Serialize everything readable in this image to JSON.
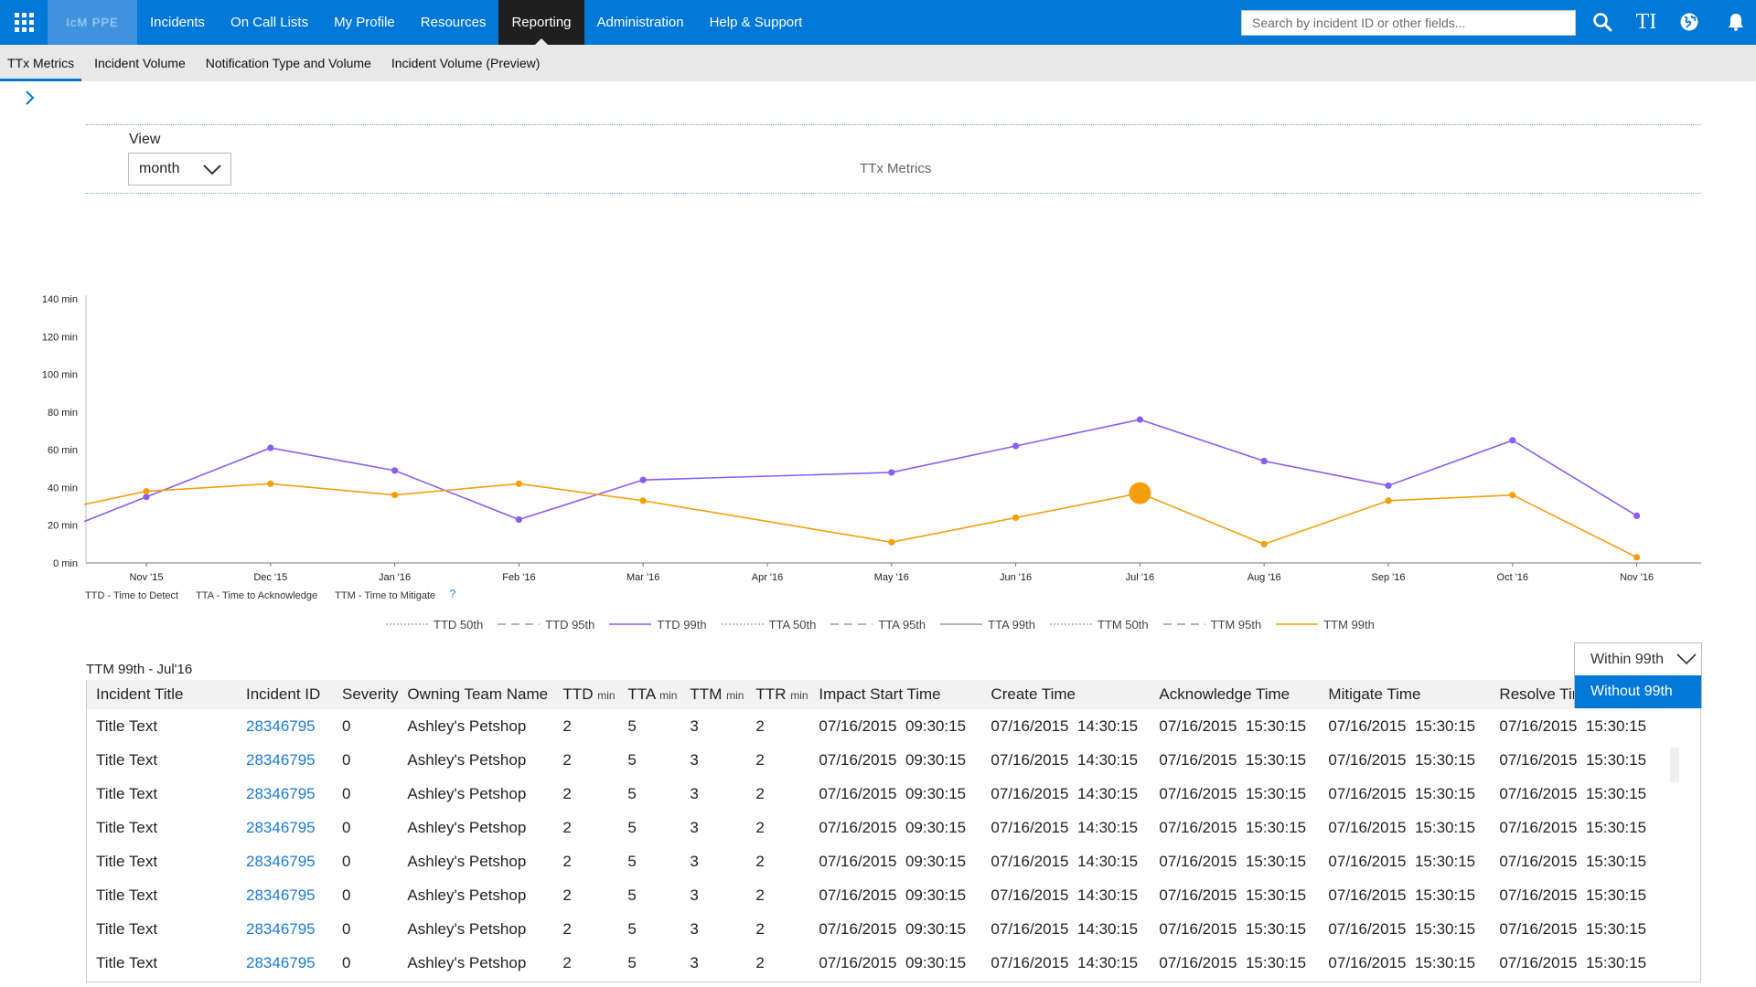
{
  "topnav": {
    "brand": "IcM PPE",
    "items": [
      "Incidents",
      "On Call Lists",
      "My Profile",
      "Resources",
      "Reporting",
      "Administration",
      "Help & Support"
    ],
    "active": "Reporting",
    "search_placeholder": "Search by incident ID or other fields...",
    "accent": "#0078d7",
    "icons": [
      "waffle-icon",
      "search-icon",
      "ti-icon",
      "globe-icon",
      "bell-icon"
    ],
    "ti_label": "TI"
  },
  "subnav": {
    "tabs": [
      "TTx Metrics",
      "Incident Volume",
      "Notification Type and Volume",
      "Incident Volume (Preview)"
    ],
    "active": "TTx Metrics"
  },
  "view": {
    "label": "View",
    "selected": "month"
  },
  "chart_caption": "TTx Metrics",
  "chart_data": {
    "type": "line",
    "title": "",
    "xlabel": "",
    "ylabel": "",
    "ylim": [
      0,
      140
    ],
    "ytick_labels": [
      "140 min",
      "120 min",
      "100 min",
      "80 min",
      "60 min",
      "40 min",
      "20 min",
      "0 min"
    ],
    "categories": [
      "Nov '15",
      "Dec '15",
      "Jan '16",
      "Feb '16",
      "Mar '16",
      "Apr '16",
      "May '16",
      "Jun '16",
      "Jul '16",
      "Aug '16",
      "Sep '16",
      "Oct '16",
      "Nov '16"
    ],
    "grid": false,
    "series": [
      {
        "name": "TTD 99th",
        "color": "#8b5cf6",
        "x": [
          -0.5,
          0,
          1,
          2,
          3,
          4,
          6,
          7,
          8,
          9,
          10,
          11,
          12
        ],
        "values": [
          22,
          35,
          61,
          49,
          23,
          44,
          48,
          62,
          76,
          54,
          41,
          65,
          25
        ]
      },
      {
        "name": "TTM 99th",
        "color": "#f59e0b",
        "x": [
          -0.5,
          0,
          1,
          2,
          3,
          4,
          6,
          7,
          8,
          9,
          10,
          11,
          12
        ],
        "values": [
          31,
          38,
          42,
          36,
          42,
          33,
          11,
          24,
          37,
          10,
          33,
          36,
          3
        ]
      }
    ],
    "highlight": {
      "series": "TTM 99th",
      "category": "Jul '16"
    },
    "legend": [
      {
        "name": "TTD 50th",
        "style": "dotted",
        "color": "#999999"
      },
      {
        "name": "TTD 95th",
        "style": "dashed",
        "color": "#888888"
      },
      {
        "name": "TTD 99th",
        "style": "solid",
        "color": "#8b5cf6"
      },
      {
        "name": "TTA 50th",
        "style": "dotted",
        "color": "#999999"
      },
      {
        "name": "TTA 95th",
        "style": "dashed",
        "color": "#888888"
      },
      {
        "name": "TTA 99th",
        "style": "solid",
        "color": "#999999"
      },
      {
        "name": "TTM 50th",
        "style": "dotted",
        "color": "#999999"
      },
      {
        "name": "TTM 95th",
        "style": "dashed",
        "color": "#888888"
      },
      {
        "name": "TTM 99th",
        "style": "solid",
        "color": "#f59e0b"
      }
    ],
    "legend_position": "bottom",
    "abbreviations": [
      "TTD - Time to Detect",
      "TTA - Time to Acknowledge",
      "TTM - Time to Mitigate"
    ],
    "help_symbol": "?"
  },
  "table": {
    "title": "TTM 99th - Jul'16",
    "headers": [
      {
        "label": "Incident Title",
        "unit": ""
      },
      {
        "label": "Incident ID",
        "unit": ""
      },
      {
        "label": "Severity",
        "unit": ""
      },
      {
        "label": "Owning Team Name",
        "unit": ""
      },
      {
        "label": "TTD",
        "unit": "min"
      },
      {
        "label": "TTA",
        "unit": "min"
      },
      {
        "label": "TTM",
        "unit": "min"
      },
      {
        "label": "TTR",
        "unit": "min"
      },
      {
        "label": "Impact Start Time",
        "unit": ""
      },
      {
        "label": "Create Time",
        "unit": ""
      },
      {
        "label": "Acknowledge Time",
        "unit": ""
      },
      {
        "label": "Mitigate Time",
        "unit": ""
      },
      {
        "label": "Resolve Time",
        "unit": ""
      }
    ],
    "rows": [
      [
        "Title Text",
        "28346795",
        "0",
        "Ashley's Petshop",
        "2",
        "5",
        "3",
        "2",
        "07/16/2015  09:30:15",
        "07/16/2015  14:30:15",
        "07/16/2015  15:30:15",
        "07/16/2015  15:30:15",
        "07/16/2015  15:30:15"
      ],
      [
        "Title Text",
        "28346795",
        "0",
        "Ashley's Petshop",
        "2",
        "5",
        "3",
        "2",
        "07/16/2015  09:30:15",
        "07/16/2015  14:30:15",
        "07/16/2015  15:30:15",
        "07/16/2015  15:30:15",
        "07/16/2015  15:30:15"
      ],
      [
        "Title Text",
        "28346795",
        "0",
        "Ashley's Petshop",
        "2",
        "5",
        "3",
        "2",
        "07/16/2015  09:30:15",
        "07/16/2015  14:30:15",
        "07/16/2015  15:30:15",
        "07/16/2015  15:30:15",
        "07/16/2015  15:30:15"
      ],
      [
        "Title Text",
        "28346795",
        "0",
        "Ashley's Petshop",
        "2",
        "5",
        "3",
        "2",
        "07/16/2015  09:30:15",
        "07/16/2015  14:30:15",
        "07/16/2015  15:30:15",
        "07/16/2015  15:30:15",
        "07/16/2015  15:30:15"
      ],
      [
        "Title Text",
        "28346795",
        "0",
        "Ashley's Petshop",
        "2",
        "5",
        "3",
        "2",
        "07/16/2015  09:30:15",
        "07/16/2015  14:30:15",
        "07/16/2015  15:30:15",
        "07/16/2015  15:30:15",
        "07/16/2015  15:30:15"
      ],
      [
        "Title Text",
        "28346795",
        "0",
        "Ashley's Petshop",
        "2",
        "5",
        "3",
        "2",
        "07/16/2015  09:30:15",
        "07/16/2015  14:30:15",
        "07/16/2015  15:30:15",
        "07/16/2015  15:30:15",
        "07/16/2015  15:30:15"
      ],
      [
        "Title Text",
        "28346795",
        "0",
        "Ashley's Petshop",
        "2",
        "5",
        "3",
        "2",
        "07/16/2015  09:30:15",
        "07/16/2015  14:30:15",
        "07/16/2015  15:30:15",
        "07/16/2015  15:30:15",
        "07/16/2015  15:30:15"
      ],
      [
        "Title Text",
        "28346795",
        "0",
        "Ashley's Petshop",
        "2",
        "5",
        "3",
        "2",
        "07/16/2015  09:30:15",
        "07/16/2015  14:30:15",
        "07/16/2015  15:30:15",
        "07/16/2015  15:30:15",
        "07/16/2015  15:30:15"
      ]
    ]
  },
  "percentile_dropdown": {
    "selected": "Within 99th",
    "options": [
      "Without 99th"
    ],
    "highlighted": "Without 99th"
  }
}
